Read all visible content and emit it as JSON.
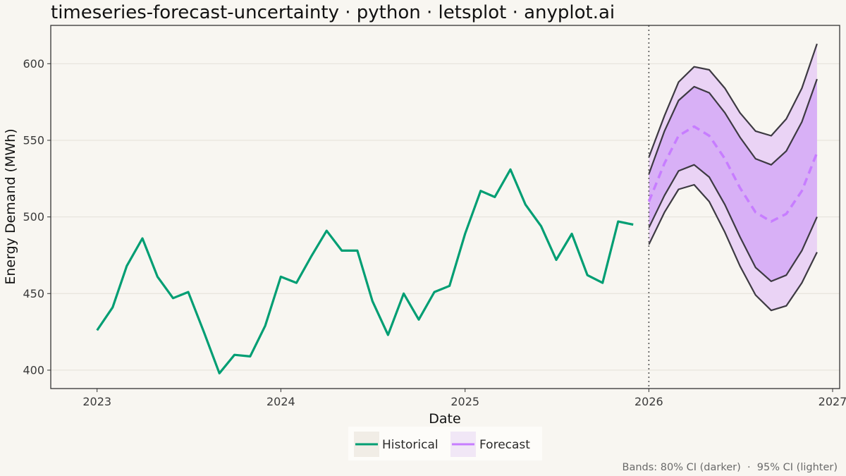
{
  "chart_data": {
    "type": "line",
    "title": "timeseries-forecast-uncertainty · python · letsplot · anyplot.ai",
    "xlabel": "Date",
    "ylabel": "Energy Demand (MWh)",
    "xlim": [
      "2022-10-01",
      "2027-01-15"
    ],
    "ylim": [
      388,
      625
    ],
    "x_ticks": [
      {
        "value": "2023-01-01",
        "label": "2023"
      },
      {
        "value": "2024-01-01",
        "label": "2024"
      },
      {
        "value": "2025-01-01",
        "label": "2025"
      },
      {
        "value": "2026-01-01",
        "label": "2026"
      },
      {
        "value": "2027-01-01",
        "label": "2027"
      }
    ],
    "y_ticks": [
      400,
      450,
      500,
      550,
      600
    ],
    "grid": "horizontal",
    "forecast_start": "2026-01-01",
    "legend": {
      "position": "bottom",
      "entries": [
        {
          "label": "Historical",
          "color": "#009e73",
          "style": "solid"
        },
        {
          "label": "Forecast",
          "color": "#c77dff",
          "style": "dashed"
        }
      ]
    },
    "caption": "Bands: 80% CI (darker)  ·  95% CI (lighter)",
    "colors": {
      "historical": "#009e73",
      "forecast": "#c77dff",
      "band_80": "#d8b0f6",
      "band_95": "#ead3f5",
      "band_edges": "#3d3a42",
      "vline": "#555555"
    },
    "series": [
      {
        "name": "Historical",
        "x": [
          "2023-01-01",
          "2023-02-01",
          "2023-03-01",
          "2023-04-01",
          "2023-05-01",
          "2023-06-01",
          "2023-07-01",
          "2023-08-01",
          "2023-09-01",
          "2023-10-01",
          "2023-11-01",
          "2023-12-01",
          "2024-01-01",
          "2024-02-01",
          "2024-03-01",
          "2024-04-01",
          "2024-05-01",
          "2024-06-01",
          "2024-07-01",
          "2024-08-01",
          "2024-09-01",
          "2024-10-01",
          "2024-11-01",
          "2024-12-01",
          "2025-01-01",
          "2025-02-01",
          "2025-03-01",
          "2025-04-01",
          "2025-05-01",
          "2025-06-01",
          "2025-07-01",
          "2025-08-01",
          "2025-09-01",
          "2025-10-01",
          "2025-11-01",
          "2025-12-01"
        ],
        "values": [
          426,
          441,
          468,
          486,
          461,
          447,
          451,
          425,
          398,
          410,
          409,
          429,
          461,
          457,
          474,
          491,
          478,
          478,
          445,
          423,
          450,
          433,
          451,
          455,
          489,
          517,
          513,
          531,
          508,
          494,
          472,
          489,
          462,
          457,
          497,
          495
        ]
      },
      {
        "name": "Forecast",
        "x": [
          "2026-01-01",
          "2026-02-01",
          "2026-03-01",
          "2026-04-01",
          "2026-05-01",
          "2026-06-01",
          "2026-07-01",
          "2026-08-01",
          "2026-09-01",
          "2026-10-01",
          "2026-11-01",
          "2026-12-01"
        ],
        "values": [
          510,
          535,
          553,
          559,
          553,
          538,
          519,
          503,
          497,
          502,
          517,
          542
        ],
        "lower80": [
          493,
          514,
          530,
          534,
          526,
          508,
          487,
          467,
          458,
          462,
          478,
          500
        ],
        "upper80": [
          528,
          556,
          576,
          585,
          581,
          568,
          552,
          538,
          534,
          543,
          562,
          590
        ],
        "lower95": [
          482,
          503,
          518,
          521,
          510,
          490,
          468,
          449,
          439,
          442,
          457,
          477
        ],
        "upper95": [
          539,
          566,
          588,
          598,
          596,
          584,
          568,
          556,
          553,
          564,
          584,
          613
        ]
      }
    ]
  }
}
